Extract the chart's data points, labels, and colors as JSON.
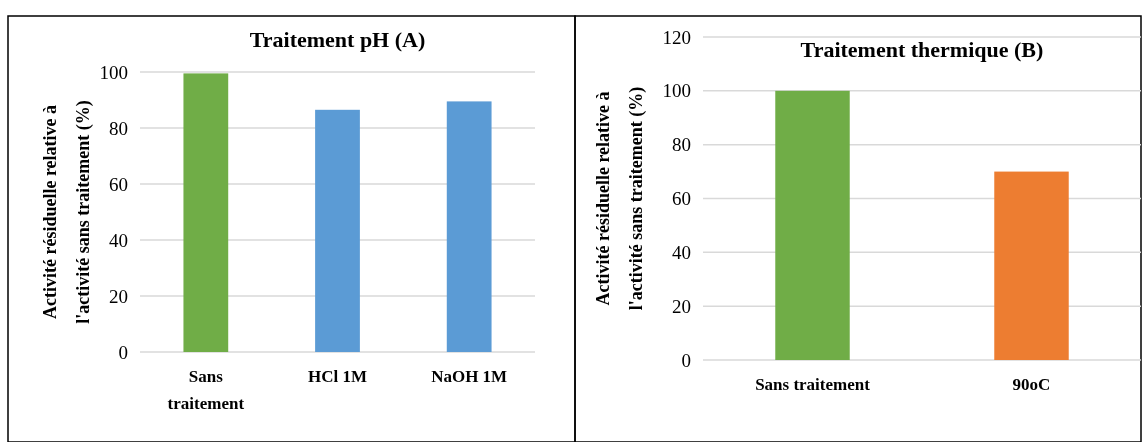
{
  "chart_data": [
    {
      "type": "bar",
      "title": "Traitement pH  (A)",
      "ylabel": "Activité résiduelle relative à l'activité sans traitement (%)",
      "categories": [
        "Sans traitement",
        "HCl 1M",
        "NaOH 1M"
      ],
      "values": [
        99.5,
        86.5,
        89.5
      ],
      "colors": [
        "#70ad47",
        "#5b9bd5",
        "#5b9bd5"
      ],
      "ylim": [
        0,
        100
      ],
      "yticks": [
        0,
        20,
        40,
        60,
        80,
        100
      ],
      "grid": "y"
    },
    {
      "type": "bar",
      "title": "Traitement thermique   (B)",
      "ylabel": "Activité résiduelle relative à l'activité sans traitement (%)",
      "categories": [
        "Sans traitement",
        "90oC"
      ],
      "values": [
        100,
        70
      ],
      "colors": [
        "#70ad47",
        "#ed7d31"
      ],
      "ylim": [
        0,
        120
      ],
      "yticks": [
        0,
        20,
        40,
        60,
        80,
        100,
        120
      ],
      "grid": "y"
    }
  ]
}
